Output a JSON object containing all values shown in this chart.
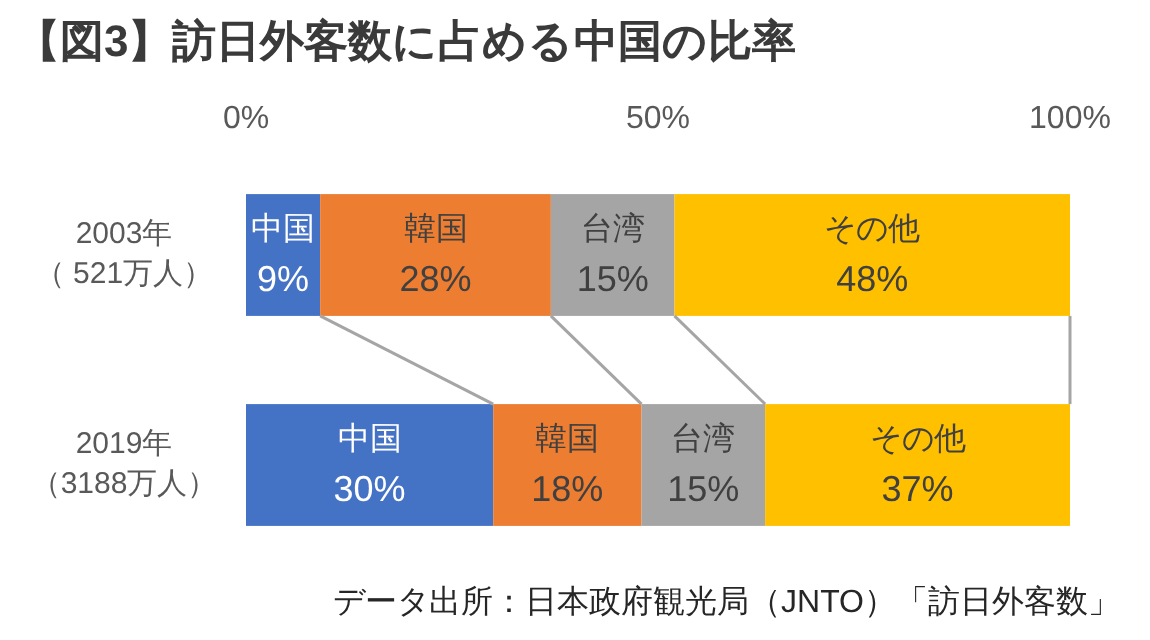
{
  "chart_data": {
    "type": "bar",
    "orientation": "horizontal",
    "stacked": true,
    "title": "【図3】訪日外客数に占める中国の比率",
    "categories": [
      "2003年（ 521万人）",
      "2019年（3188万人）"
    ],
    "series": [
      {
        "name": "中国",
        "color": "#4472c4",
        "values": [
          9,
          30
        ],
        "value_labels": [
          "9%",
          "30%"
        ]
      },
      {
        "name": "韓国",
        "color": "#ed7d31",
        "values": [
          28,
          18
        ],
        "value_labels": [
          "28%",
          "18%"
        ]
      },
      {
        "name": "台湾",
        "color": "#a5a5a5",
        "values": [
          15,
          15
        ],
        "value_labels": [
          "15%",
          "15%"
        ]
      },
      {
        "name": "その他",
        "color": "#ffc000",
        "values": [
          48,
          37
        ],
        "value_labels": [
          "48%",
          "37%"
        ]
      }
    ],
    "xlim": [
      0,
      100
    ],
    "xticks": [
      {
        "value": 0,
        "label": "0%"
      },
      {
        "value": 50,
        "label": "50%"
      },
      {
        "value": 100,
        "label": "100%"
      }
    ],
    "annotations": [
      "データ出所：日本政府観光局（JNTO）「訪日外客数」"
    ]
  }
}
